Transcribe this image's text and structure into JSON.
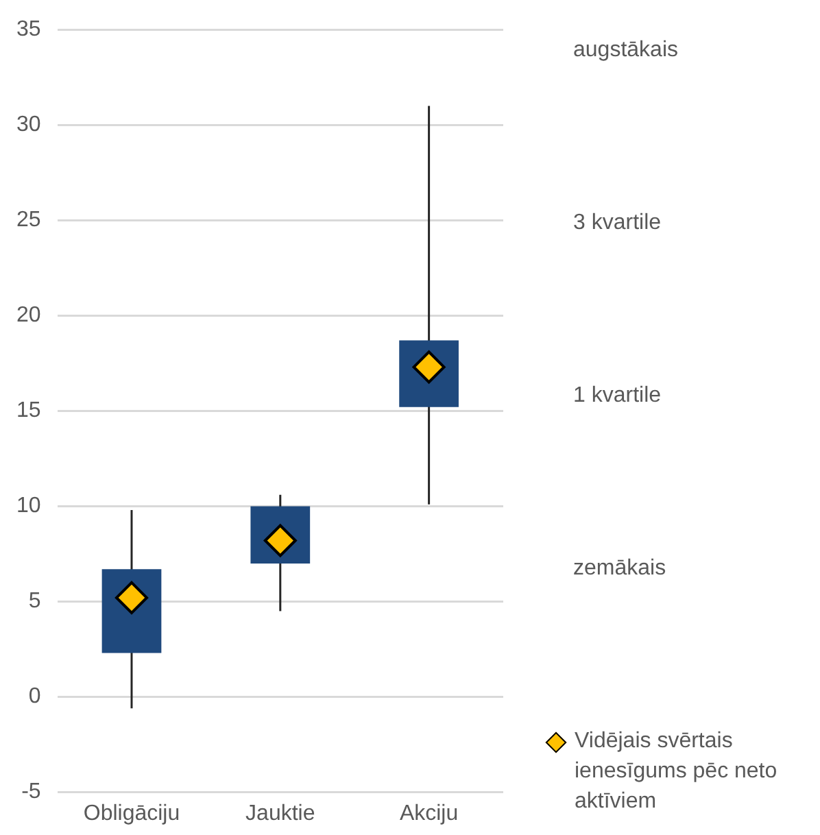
{
  "chart_data": {
    "type": "box",
    "categories": [
      "Obligāciju",
      "Jauktie",
      "Akciju"
    ],
    "color": "#1f497d",
    "boxes": [
      {
        "low": -0.6,
        "q1": 2.3,
        "q3": 6.7,
        "high": 9.8
      },
      {
        "low": 4.5,
        "q1": 7.0,
        "q3": 10.0,
        "high": 10.6
      },
      {
        "low": 10.1,
        "q1": 15.2,
        "q3": 18.7,
        "high": 31.0
      }
    ],
    "series": [
      {
        "name": "Vidējais svērtais ienesīgums pēc neto aktīviem",
        "type": "scatter",
        "color": "#ffc000",
        "x": [
          "Obligāciju",
          "Jauktie",
          "Akciju"
        ],
        "values": [
          5.2,
          8.2,
          17.3
        ]
      }
    ],
    "marker": "diamond",
    "ylim": [
      -5,
      35
    ],
    "yticks": [
      -5,
      0,
      5,
      10,
      15,
      20,
      25,
      30,
      35
    ],
    "grid": "y",
    "legend": "bottom right",
    "annotations": [
      "augstākais",
      "3 kvartile",
      "1 kvartile",
      "zemākais"
    ]
  }
}
